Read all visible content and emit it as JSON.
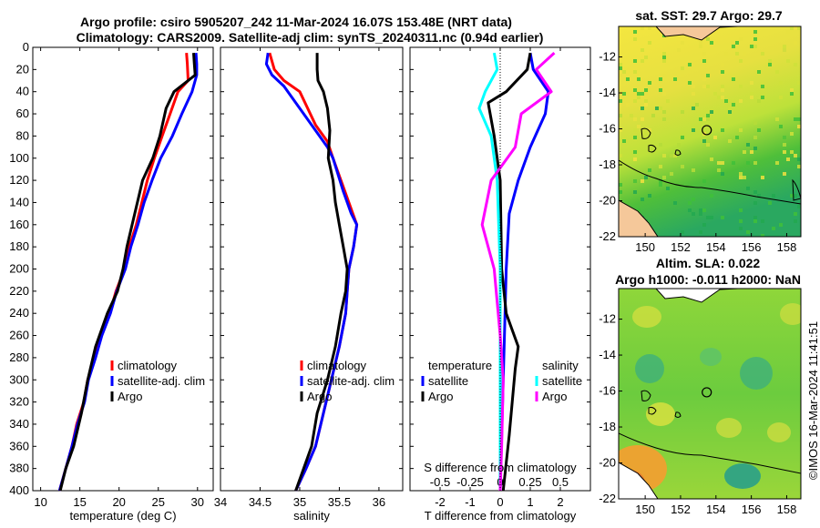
{
  "titles": {
    "line1": "Argo profile: csiro 5905207_242 11-Mar-2024 16.07S 153.48E (NRT data)",
    "line2": "Climatology: CARS2009. Satellite-adj clim: synTS_20240311.nc (0.94d earlier)",
    "sst": "sat. SST: 29.7 Argo: 29.7",
    "sla1": "Altim. SLA: 0.022",
    "sla2": "Argo h1000: -0.011 h2000: NaN",
    "credit": "©IMOS 16-Mar-2024 11:41:51"
  },
  "colors": {
    "clim": "#ff0000",
    "sat": "#0000ff",
    "argo": "#000000",
    "sat_s": "#00ffff",
    "argo_s": "#ff00ff"
  },
  "chart_data": [
    {
      "type": "line",
      "name": "temperature-profile",
      "xlabel": "temperature (deg C)",
      "ylim": [
        0,
        400
      ],
      "xlim": [
        9,
        32
      ],
      "xticks": [
        "10",
        "15",
        "20",
        "25",
        "30"
      ],
      "yticks": [
        "0",
        "20",
        "40",
        "60",
        "80",
        "100",
        "120",
        "140",
        "160",
        "180",
        "200",
        "220",
        "240",
        "260",
        "280",
        "300",
        "320",
        "340",
        "360",
        "380",
        "400"
      ],
      "legend": [
        "climatology",
        "satellite-adj. clim",
        "Argo"
      ],
      "series": [
        {
          "name": "climatology",
          "color": "clim",
          "points": [
            [
              28.6,
              5
            ],
            [
              28.7,
              15
            ],
            [
              28.8,
              30
            ],
            [
              27.5,
              40
            ],
            [
              26.5,
              60
            ],
            [
              25.5,
              80
            ],
            [
              24.5,
              100
            ],
            [
              23.6,
              120
            ],
            [
              22.9,
              140
            ],
            [
              22.2,
              160
            ],
            [
              21.3,
              180
            ],
            [
              20.7,
              200
            ],
            [
              19.6,
              220
            ],
            [
              18.8,
              240
            ],
            [
              17.6,
              260
            ],
            [
              16.9,
              280
            ],
            [
              16.0,
              300
            ],
            [
              15.5,
              320
            ],
            [
              14.6,
              340
            ],
            [
              14.0,
              360
            ],
            [
              13.2,
              380
            ],
            [
              12.4,
              400
            ]
          ]
        },
        {
          "name": "satellite-adj. clim",
          "color": "sat",
          "points": [
            [
              29.8,
              5
            ],
            [
              29.9,
              15
            ],
            [
              29.9,
              25
            ],
            [
              29.3,
              40
            ],
            [
              28.0,
              60
            ],
            [
              26.8,
              80
            ],
            [
              25.3,
              100
            ],
            [
              24.2,
              120
            ],
            [
              23.2,
              140
            ],
            [
              22.4,
              160
            ],
            [
              21.5,
              180
            ],
            [
              20.8,
              200
            ],
            [
              19.7,
              220
            ],
            [
              18.9,
              240
            ],
            [
              17.8,
              260
            ],
            [
              17.0,
              280
            ],
            [
              16.1,
              300
            ],
            [
              15.6,
              320
            ],
            [
              14.7,
              340
            ],
            [
              14.0,
              360
            ],
            [
              13.2,
              380
            ],
            [
              12.4,
              400
            ]
          ]
        },
        {
          "name": "Argo",
          "color": "argo",
          "points": [
            [
              29.5,
              5
            ],
            [
              29.6,
              15
            ],
            [
              29.7,
              25
            ],
            [
              27.0,
              40
            ],
            [
              26.0,
              55
            ],
            [
              25.2,
              80
            ],
            [
              24.3,
              100
            ],
            [
              23.0,
              120
            ],
            [
              22.0,
              150
            ],
            [
              21.0,
              180
            ],
            [
              20.5,
              200
            ],
            [
              19.8,
              220
            ],
            [
              18.5,
              240
            ],
            [
              17.0,
              270
            ],
            [
              16.0,
              300
            ],
            [
              15.2,
              330
            ],
            [
              14.2,
              360
            ],
            [
              13.2,
              380
            ],
            [
              12.5,
              400
            ]
          ]
        }
      ]
    },
    {
      "type": "line",
      "name": "salinity-profile",
      "xlabel": "salinity",
      "ylim": [
        0,
        400
      ],
      "xlim": [
        34.0,
        36.3
      ],
      "xticks": [
        "34",
        "34.5",
        "35",
        "35.5",
        "36"
      ],
      "legend": [
        "climatology",
        "satellite-adj. clim",
        "Argo"
      ],
      "series": [
        {
          "name": "climatology",
          "color": "clim",
          "points": [
            [
              34.62,
              5
            ],
            [
              34.68,
              20
            ],
            [
              34.8,
              30
            ],
            [
              35.0,
              40
            ],
            [
              35.1,
              55
            ],
            [
              35.2,
              70
            ],
            [
              35.35,
              85
            ],
            [
              35.42,
              100
            ],
            [
              35.52,
              120
            ],
            [
              35.62,
              140
            ],
            [
              35.72,
              160
            ],
            [
              35.68,
              180
            ],
            [
              35.62,
              200
            ],
            [
              35.6,
              220
            ],
            [
              35.58,
              240
            ],
            [
              35.5,
              270
            ],
            [
              35.4,
              300
            ],
            [
              35.3,
              330
            ],
            [
              35.2,
              360
            ],
            [
              35.08,
              380
            ],
            [
              34.95,
              400
            ]
          ]
        },
        {
          "name": "satellite-adj. clim",
          "color": "sat",
          "points": [
            [
              34.6,
              5
            ],
            [
              34.58,
              15
            ],
            [
              34.65,
              25
            ],
            [
              34.8,
              35
            ],
            [
              34.95,
              50
            ],
            [
              35.15,
              70
            ],
            [
              35.35,
              90
            ],
            [
              35.42,
              100
            ],
            [
              35.55,
              130
            ],
            [
              35.65,
              150
            ],
            [
              35.72,
              160
            ],
            [
              35.68,
              180
            ],
            [
              35.62,
              200
            ],
            [
              35.6,
              220
            ],
            [
              35.58,
              240
            ],
            [
              35.5,
              270
            ],
            [
              35.4,
              300
            ],
            [
              35.3,
              330
            ],
            [
              35.2,
              360
            ],
            [
              35.08,
              380
            ],
            [
              34.95,
              400
            ]
          ]
        },
        {
          "name": "Argo",
          "color": "argo",
          "points": [
            [
              35.22,
              5
            ],
            [
              35.22,
              20
            ],
            [
              35.23,
              30
            ],
            [
              35.3,
              40
            ],
            [
              35.35,
              55
            ],
            [
              35.38,
              75
            ],
            [
              35.36,
              100
            ],
            [
              35.42,
              120
            ],
            [
              35.45,
              140
            ],
            [
              35.5,
              160
            ],
            [
              35.55,
              180
            ],
            [
              35.6,
              200
            ],
            [
              35.58,
              220
            ],
            [
              35.52,
              240
            ],
            [
              35.45,
              270
            ],
            [
              35.35,
              300
            ],
            [
              35.22,
              330
            ],
            [
              35.15,
              360
            ],
            [
              35.05,
              380
            ],
            [
              34.95,
              400
            ]
          ]
        }
      ]
    },
    {
      "type": "line",
      "name": "difference-profile",
      "xlabel": "T difference from climatology",
      "xlabel_top": "S difference from climatology",
      "ylim": [
        0,
        400
      ],
      "xlim": [
        -3,
        3
      ],
      "xticks": [
        "-2",
        "-1",
        "0",
        "1",
        "2"
      ],
      "xticks_s": [
        "-0.5",
        "-0.25",
        "0",
        "0.25",
        "0.5"
      ],
      "legend_t_title": "temperature",
      "legend_s_title": "salinity",
      "legend_t": [
        "satellite",
        "Argo"
      ],
      "legend_s": [
        "satellite",
        "Argo"
      ],
      "series": [
        {
          "name": "T satellite",
          "color": "sat",
          "points": [
            [
              1.0,
              5
            ],
            [
              1.1,
              20
            ],
            [
              1.6,
              40
            ],
            [
              1.5,
              60
            ],
            [
              1.0,
              90
            ],
            [
              0.6,
              120
            ],
            [
              0.3,
              150
            ],
            [
              0.2,
              200
            ],
            [
              0.15,
              250
            ],
            [
              0.1,
              300
            ],
            [
              0.05,
              350
            ],
            [
              0.0,
              400
            ]
          ]
        },
        {
          "name": "T Argo",
          "color": "argo",
          "points": [
            [
              1.0,
              5
            ],
            [
              0.9,
              20
            ],
            [
              0.2,
              40
            ],
            [
              -0.4,
              50
            ],
            [
              -0.2,
              80
            ],
            [
              0.0,
              120
            ],
            [
              0.05,
              200
            ],
            [
              0.2,
              240
            ],
            [
              0.6,
              270
            ],
            [
              0.5,
              290
            ],
            [
              0.4,
              320
            ],
            [
              0.3,
              350
            ],
            [
              0.1,
              400
            ]
          ]
        },
        {
          "name": "S satellite",
          "color": "sat_s",
          "points": [
            [
              -0.2,
              5
            ],
            [
              -0.1,
              20
            ],
            [
              -0.5,
              40
            ],
            [
              -0.7,
              55
            ],
            [
              -0.3,
              80
            ],
            [
              -0.1,
              120
            ],
            [
              0.0,
              200
            ],
            [
              0.0,
              300
            ],
            [
              0.0,
              400
            ]
          ]
        },
        {
          "name": "S Argo",
          "color": "argo_s",
          "points": [
            [
              1.8,
              5
            ],
            [
              1.2,
              20
            ],
            [
              1.7,
              40
            ],
            [
              0.7,
              60
            ],
            [
              0.5,
              90
            ],
            [
              -0.3,
              120
            ],
            [
              -0.6,
              160
            ],
            [
              -0.2,
              200
            ],
            [
              0.0,
              260
            ],
            [
              0.1,
              300
            ],
            [
              0.05,
              360
            ],
            [
              0.0,
              400
            ]
          ]
        }
      ]
    },
    {
      "type": "heatmap",
      "name": "sst-map",
      "xticks": [
        "150",
        "152",
        "154",
        "156",
        "158"
      ],
      "yticks": [
        "-12",
        "-14",
        "-16",
        "-18",
        "-20",
        "-22"
      ],
      "xlim": [
        148.5,
        158.8
      ],
      "ylim": [
        -22,
        -10.3
      ],
      "marker": [
        153.48,
        -16.07
      ]
    },
    {
      "type": "heatmap",
      "name": "sla-map",
      "xticks": [
        "150",
        "152",
        "154",
        "156",
        "158"
      ],
      "yticks": [
        "-12",
        "-14",
        "-16",
        "-18",
        "-20",
        "-22"
      ],
      "xlim": [
        148.5,
        158.8
      ],
      "ylim": [
        -22,
        -10.3
      ],
      "marker": [
        153.48,
        -16.07
      ]
    }
  ]
}
